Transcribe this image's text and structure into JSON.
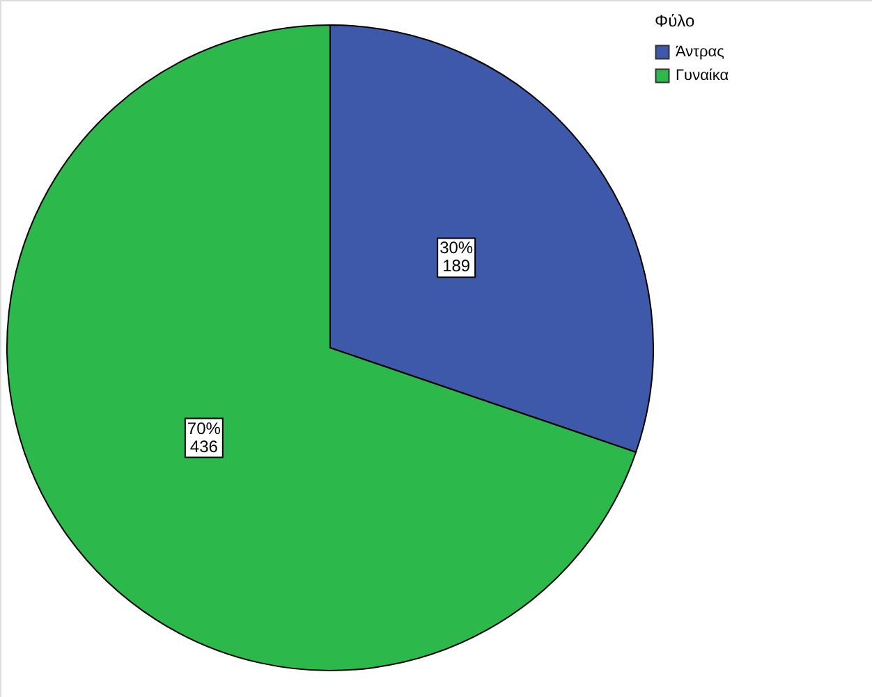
{
  "chart_data": {
    "type": "pie",
    "legend_title": "Φύλο",
    "legend": "top right",
    "categories": [
      "Άντρας",
      "Γυναίκα"
    ],
    "values": [
      189,
      436
    ],
    "colors": [
      "#3f59aa",
      "#2db84b"
    ],
    "value_labels": [
      "30%\n189",
      "70%\n436"
    ]
  }
}
